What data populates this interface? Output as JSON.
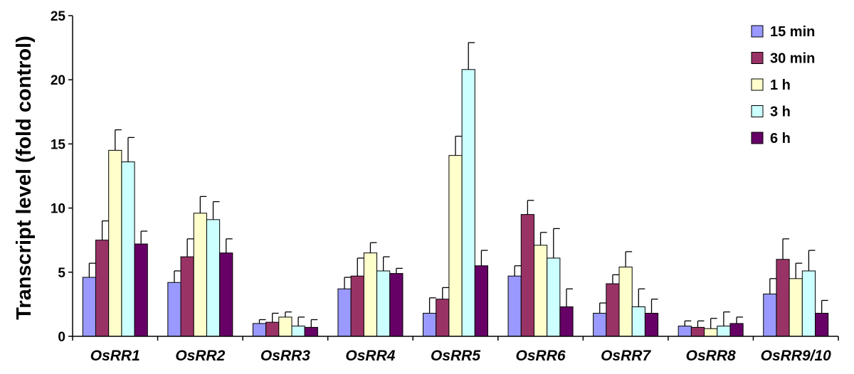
{
  "chart_data": {
    "type": "bar",
    "title": "",
    "xlabel": "",
    "ylabel": "Transcript level (fold control)",
    "ylim": [
      0,
      25
    ],
    "yticks": [
      0,
      5,
      10,
      15,
      20,
      25
    ],
    "grid": false,
    "legend": "top-right",
    "error_bars": "upper",
    "categories": [
      "OsRR1",
      "OsRR2",
      "OsRR3",
      "OsRR4",
      "OsRR5",
      "OsRR6",
      "OsRR7",
      "OsRR8",
      "OsRR9/10"
    ],
    "series": [
      {
        "name": "15 min",
        "color": "#9999ff",
        "values": [
          4.6,
          4.2,
          1.0,
          3.7,
          1.8,
          4.7,
          1.8,
          0.8,
          3.3
        ],
        "errors": [
          1.1,
          0.9,
          0.3,
          0.9,
          1.2,
          0.8,
          0.8,
          0.4,
          1.2
        ]
      },
      {
        "name": "30 min",
        "color": "#993366",
        "values": [
          7.5,
          6.2,
          1.1,
          4.7,
          2.9,
          9.5,
          4.1,
          0.7,
          6.0
        ],
        "errors": [
          1.5,
          1.4,
          0.7,
          1.4,
          0.9,
          1.1,
          0.7,
          0.5,
          1.6
        ]
      },
      {
        "name": "1 h",
        "color": "#ffffcc",
        "values": [
          14.5,
          9.6,
          1.5,
          6.5,
          14.1,
          7.1,
          5.4,
          0.6,
          4.5
        ],
        "errors": [
          1.6,
          1.3,
          0.4,
          0.8,
          1.5,
          1.0,
          1.2,
          0.8,
          1.2
        ]
      },
      {
        "name": "3 h",
        "color": "#ccffff",
        "values": [
          13.6,
          9.1,
          0.8,
          5.1,
          20.8,
          6.1,
          2.3,
          0.8,
          5.1
        ],
        "errors": [
          1.9,
          1.4,
          0.7,
          1.1,
          2.1,
          2.3,
          1.4,
          1.1,
          1.6
        ]
      },
      {
        "name": "6 h",
        "color": "#660066",
        "values": [
          7.2,
          6.5,
          0.7,
          4.9,
          5.5,
          2.3,
          1.8,
          1.0,
          1.8
        ],
        "errors": [
          1.0,
          1.1,
          0.6,
          0.4,
          1.2,
          1.4,
          1.1,
          0.5,
          1.0
        ]
      }
    ]
  }
}
